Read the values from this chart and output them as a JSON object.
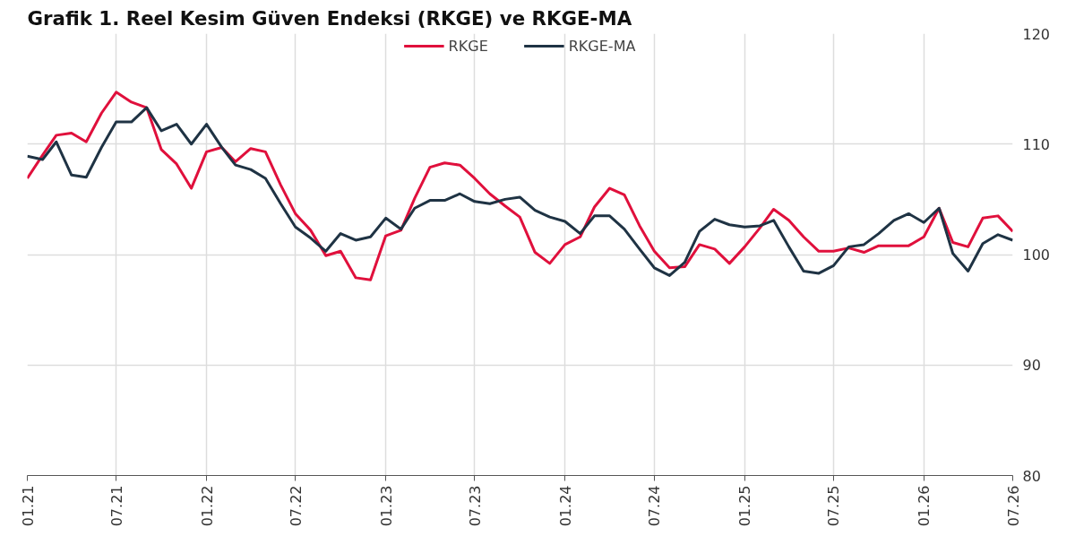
{
  "chart_data": {
    "type": "line",
    "title": "Grafik 1. Reel Kesim Güven Endeksi (RKGE) ve RKGE-MA",
    "x": [
      "2021-01",
      "2021-02",
      "2021-03",
      "2021-04",
      "2021-05",
      "2021-06",
      "2021-07",
      "2021-08",
      "2021-09",
      "2021-10",
      "2021-11",
      "2021-12",
      "2022-01",
      "2022-02",
      "2022-03",
      "2022-04",
      "2022-05",
      "2022-06",
      "2022-07",
      "2022-08",
      "2022-09",
      "2022-10",
      "2022-11",
      "2022-12",
      "2023-01",
      "2023-02",
      "2023-03",
      "2023-04",
      "2023-05",
      "2023-06",
      "2023-07",
      "2023-08",
      "2023-09",
      "2023-10",
      "2023-11",
      "2023-12",
      "2024-01",
      "2024-02",
      "2024-03",
      "2024-04",
      "2024-05",
      "2024-06",
      "2024-07",
      "2024-08",
      "2024-09",
      "2024-10",
      "2024-11",
      "2024-12",
      "2025-01",
      "2025-02",
      "2025-03",
      "2025-04",
      "2025-05",
      "2025-06",
      "2025-07",
      "2025-08",
      "2025-09",
      "2025-10",
      "2025-11",
      "2025-12",
      "2026-01",
      "2026-02",
      "2026-03",
      "2026-04",
      "2026-05",
      "2026-06",
      "2026-07"
    ],
    "series": [
      {
        "name": "RKGE",
        "color": "#e0103c",
        "values": [
          106.9,
          109,
          110.8,
          111,
          110.2,
          112.8,
          114.7,
          113.8,
          113.3,
          109.5,
          108.2,
          106,
          109.3,
          109.7,
          108.4,
          109.6,
          109.3,
          106.3,
          103.7,
          102.2,
          99.9,
          100.3,
          97.9,
          97.7,
          101.7,
          102.2,
          105.1,
          107.9,
          108.3,
          108.1,
          106.9,
          105.5,
          104.4,
          103.4,
          100.2,
          99.2,
          100.9,
          101.6,
          104.3,
          106,
          105.4,
          102.6,
          100.3,
          98.8,
          98.9,
          100.9,
          100.5,
          99.2,
          100.7,
          102.4,
          104.1,
          103.1,
          101.6,
          100.3,
          100.3,
          100.6,
          100.2,
          100.8,
          100.8,
          100.8,
          101.6,
          104.2,
          101.1,
          100.7,
          103.3,
          103.5,
          102.1
        ]
      },
      {
        "name": "RKGE-MA",
        "color": "#1f3344",
        "values": [
          108.9,
          108.6,
          110.2,
          107.2,
          107,
          109.7,
          112,
          112,
          113.3,
          111.2,
          111.8,
          110,
          111.8,
          109.7,
          108.1,
          107.7,
          106.9,
          104.6,
          102.5,
          101.5,
          100.3,
          101.9,
          101.3,
          101.6,
          103.3,
          102.3,
          104.2,
          104.9,
          104.9,
          105.5,
          104.8,
          104.6,
          105,
          105.2,
          104,
          103.4,
          103,
          101.9,
          103.5,
          103.5,
          102.3,
          100.5,
          98.8,
          98.1,
          99.3,
          102.1,
          103.2,
          102.7,
          102.5,
          102.6,
          103.1,
          100.7,
          98.5,
          98.3,
          99,
          100.7,
          100.9,
          101.9,
          103.1,
          103.7,
          102.9,
          104.2,
          100.1,
          98.5,
          101,
          101.8,
          101.3
        ]
      }
    ],
    "xlim": [
      "2021-01",
      "2026-07"
    ],
    "xticks": [
      {
        "value": "2021-01",
        "label": "01.21"
      },
      {
        "value": "2021-07",
        "label": "07.21"
      },
      {
        "value": "2022-01",
        "label": "01.22"
      },
      {
        "value": "2022-07",
        "label": "07.22"
      },
      {
        "value": "2023-01",
        "label": "01.23"
      },
      {
        "value": "2023-07",
        "label": "07.23"
      },
      {
        "value": "2024-01",
        "label": "01.24"
      },
      {
        "value": "2024-07",
        "label": "07.24"
      },
      {
        "value": "2025-01",
        "label": "01.25"
      },
      {
        "value": "2025-07",
        "label": "07.25"
      },
      {
        "value": "2026-01",
        "label": "01.26"
      },
      {
        "value": "2026-07",
        "label": "07.26"
      }
    ],
    "ylim": [
      80,
      120
    ],
    "yticks": [
      80,
      90,
      100,
      110,
      120
    ],
    "grid": true,
    "legend": "top",
    "marker": "none",
    "line_style": "solid"
  }
}
